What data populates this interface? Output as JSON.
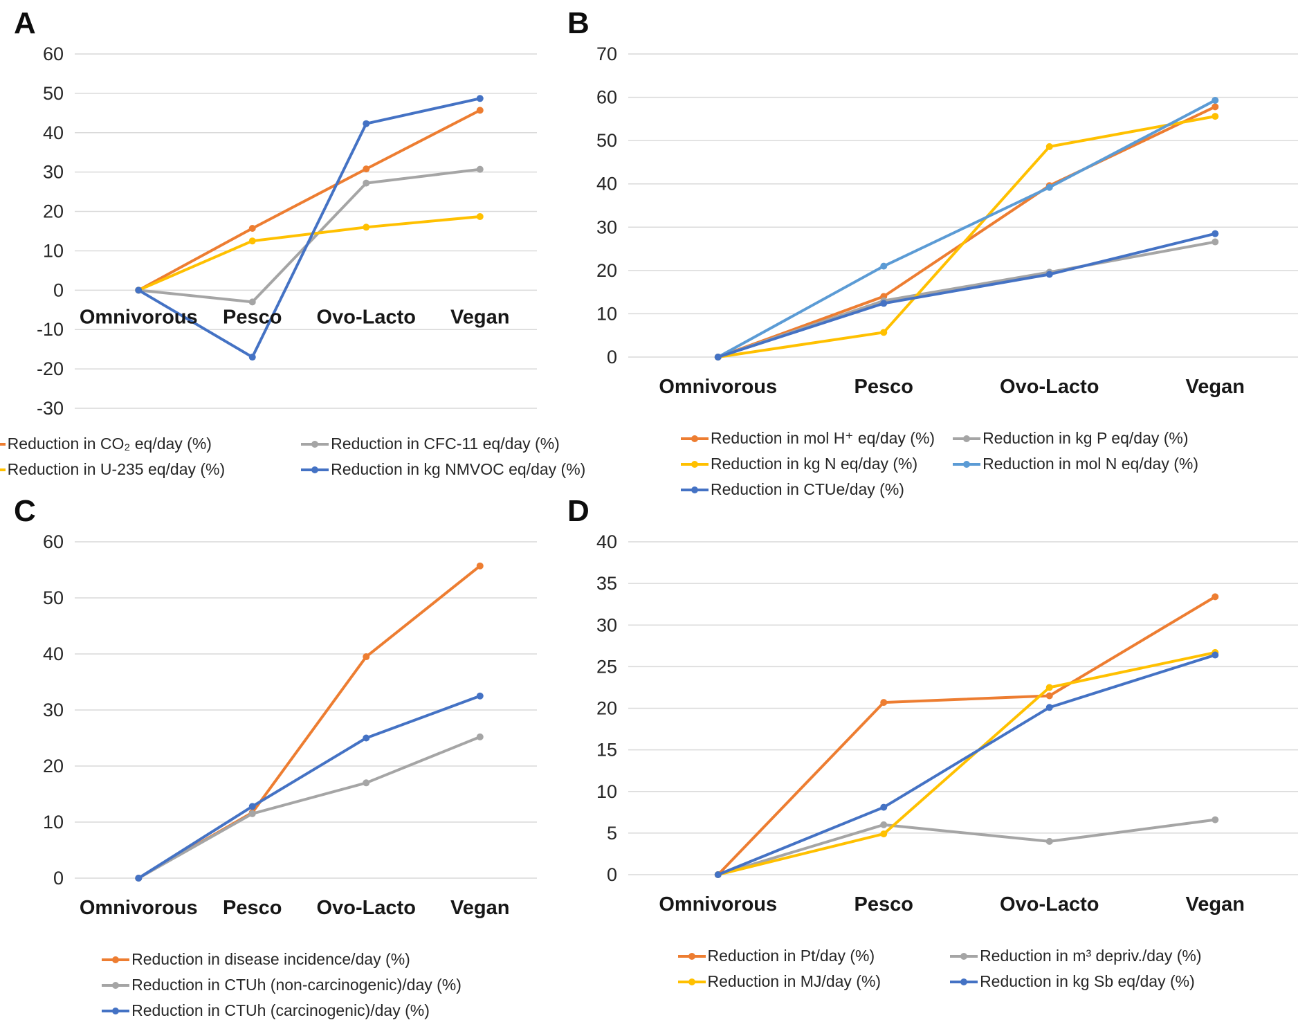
{
  "figure": {
    "background": "#ffffff"
  },
  "categories": [
    "Omnivorous",
    "Pesco",
    "Ovo-Lacto",
    "Vegan"
  ],
  "palette": {
    "orange": "#ED7D31",
    "gray": "#A5A5A5",
    "yellow": "#FFC000",
    "blue": "#4472C4",
    "light_blue": "#5B9BD5",
    "gridline": "#D9D9D9"
  },
  "chart_data": [
    {
      "type": "line",
      "label": "A",
      "categories": [
        "Omnivorous",
        "Pesco",
        "Ovo-Lacto",
        "Vegan"
      ],
      "ylim": [
        -30,
        60
      ],
      "ytick_step": 10,
      "grid": true,
      "labels_at_zero": true,
      "legend_position": "bottom",
      "legend_columns": 2,
      "series": [
        {
          "name": "Reduction in CO₂ eq/day (%)",
          "color": "#ED7D31",
          "values": [
            0,
            15.7,
            30.8,
            45.7
          ]
        },
        {
          "name": "Reduction in CFC-11 eq/day (%)",
          "color": "#A5A5A5",
          "values": [
            0,
            -3,
            27.2,
            30.7
          ]
        },
        {
          "name": "Reduction in U-235 eq/day (%)",
          "color": "#FFC000",
          "values": [
            0,
            12.5,
            16,
            18.7
          ]
        },
        {
          "name": "Reduction in kg NMVOC eq/day (%)",
          "color": "#4472C4",
          "values": [
            0,
            -17,
            42.3,
            48.7
          ]
        }
      ]
    },
    {
      "type": "line",
      "label": "B",
      "categories": [
        "Omnivorous",
        "Pesco",
        "Ovo-Lacto",
        "Vegan"
      ],
      "ylim": [
        0,
        70
      ],
      "ytick_step": 10,
      "grid": true,
      "labels_at_zero": false,
      "legend_position": "bottom",
      "legend_columns": 2,
      "series": [
        {
          "name": "Reduction in mol H⁺ eq/day (%)",
          "color": "#ED7D31",
          "values": [
            0,
            14,
            39.6,
            57.8
          ]
        },
        {
          "name": "Reduction in kg P eq/day (%)",
          "color": "#A5A5A5",
          "values": [
            0,
            13,
            19.6,
            26.6
          ]
        },
        {
          "name": "Reduction in kg N eq/day (%)",
          "color": "#FFC000",
          "values": [
            0,
            5.7,
            48.6,
            55.6
          ]
        },
        {
          "name": "Reduction in mol N eq/day (%)",
          "color": "#5B9BD5",
          "values": [
            0,
            21,
            39.2,
            59.3
          ]
        },
        {
          "name": "Reduction in CTUe/day (%)",
          "color": "#4472C4",
          "values": [
            0,
            12.4,
            19.1,
            28.5
          ]
        }
      ]
    },
    {
      "type": "line",
      "label": "C",
      "categories": [
        "Omnivorous",
        "Pesco",
        "Ovo-Lacto",
        "Vegan"
      ],
      "ylim": [
        0,
        60
      ],
      "ytick_step": 10,
      "grid": true,
      "labels_at_zero": false,
      "legend_position": "bottom",
      "legend_columns": 1,
      "series": [
        {
          "name": "Reduction in disease incidence/day (%)",
          "color": "#ED7D31",
          "values": [
            0,
            11.7,
            39.5,
            55.7
          ]
        },
        {
          "name": "Reduction in CTUh (non-carcinogenic)/day (%)",
          "color": "#A5A5A5",
          "values": [
            0,
            11.5,
            17,
            25.2
          ]
        },
        {
          "name": "Reduction in CTUh (carcinogenic)/day (%)",
          "color": "#4472C4",
          "values": [
            0,
            12.8,
            25,
            32.5
          ]
        }
      ]
    },
    {
      "type": "line",
      "label": "D",
      "categories": [
        "Omnivorous",
        "Pesco",
        "Ovo-Lacto",
        "Vegan"
      ],
      "ylim": [
        0,
        40
      ],
      "ytick_step": 5,
      "grid": true,
      "labels_at_zero": false,
      "legend_position": "bottom",
      "legend_columns": 2,
      "series": [
        {
          "name": "Reduction in Pt/day (%)",
          "color": "#ED7D31",
          "values": [
            0,
            20.7,
            21.5,
            33.4
          ]
        },
        {
          "name": "Reduction in m³ depriv./day (%)",
          "color": "#A5A5A5",
          "values": [
            0,
            6,
            4,
            6.6
          ]
        },
        {
          "name": "Reduction in MJ/day (%)",
          "color": "#FFC000",
          "values": [
            0,
            4.9,
            22.5,
            26.7
          ]
        },
        {
          "name": "Reduction in kg Sb eq/day (%)",
          "color": "#4472C4",
          "values": [
            0,
            8.1,
            20.1,
            26.4
          ]
        }
      ]
    }
  ]
}
